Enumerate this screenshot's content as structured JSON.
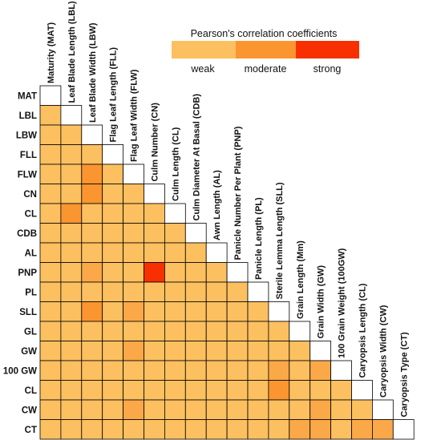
{
  "chart_data": {
    "type": "heatmap",
    "title": "",
    "row_labels": [
      "MAT",
      "LBL",
      "LBW",
      "FLL",
      "FLW",
      "CN",
      "CL",
      "CDB",
      "AL",
      "PNP",
      "PL",
      "SLL",
      "GL",
      "GW",
      "100 GW",
      "CL",
      "CW",
      "CT"
    ],
    "col_labels": [
      "Maturity (MAT)",
      "Leaf Blade Length (LBL)",
      "Leaf Blade Width (LBW)",
      "Flag Leaf Length (FLL)",
      "Flag Leaf Width (FLW)",
      "Culm Number (CN)",
      "Culm Length (CL)",
      "Culm Diameter At Basal (CDB)",
      "Awn Length (AL)",
      "Panicle Number Per Plant (PNP)",
      "Panicle Length (PL)",
      "Sterile Lemma Length (SLL)",
      "Grain Length (Mm)",
      "Grain Width (GW)",
      "100 Grain Weight (100GW)",
      "Caryopsis Length (CL)",
      "Caryopsis Width (CW)",
      "Caryopsis Type (CT)"
    ],
    "values": [
      [
        null
      ],
      [
        1,
        null
      ],
      [
        1,
        1,
        null
      ],
      [
        1,
        1,
        1,
        null
      ],
      [
        1,
        1,
        2,
        1,
        null
      ],
      [
        1,
        1,
        2,
        1,
        1,
        null
      ],
      [
        1,
        2,
        1,
        1,
        1,
        1,
        null
      ],
      [
        1,
        1,
        1,
        1,
        1,
        1,
        1,
        null
      ],
      [
        1,
        1,
        1,
        1,
        1,
        1,
        1,
        1,
        null
      ],
      [
        1,
        1,
        1.5,
        1,
        1,
        3,
        1,
        1,
        1,
        null
      ],
      [
        1,
        1,
        1,
        1,
        1,
        1,
        1,
        1,
        1,
        1,
        null
      ],
      [
        1,
        1,
        2,
        1,
        1.5,
        1,
        1,
        1,
        1,
        1,
        1,
        null
      ],
      [
        1,
        1,
        1,
        1,
        1,
        1,
        1,
        1,
        1,
        1,
        1,
        1,
        null
      ],
      [
        1,
        1,
        1,
        1,
        1.5,
        1,
        1,
        1,
        1,
        1,
        1,
        1,
        1,
        null
      ],
      [
        1,
        1,
        1,
        1,
        1,
        1,
        1,
        1,
        1,
        1,
        1,
        1.5,
        1,
        1.5,
        null
      ],
      [
        1,
        1,
        1,
        1,
        1,
        1,
        1,
        1,
        1,
        1,
        1,
        2,
        1,
        1,
        1,
        null
      ],
      [
        1,
        1,
        1,
        1,
        1.5,
        1,
        1,
        1,
        1,
        1,
        1,
        1,
        1,
        1.5,
        1,
        1,
        null
      ],
      [
        1,
        1,
        1,
        1,
        1,
        1,
        1,
        1,
        1,
        1,
        1,
        1,
        1.5,
        1.5,
        1,
        1.5,
        1.5,
        null
      ]
    ],
    "scale": {
      "1": "weak",
      "2": "moderate",
      "3": "strong"
    },
    "colors": {
      "weak": "#fcc060",
      "moderate": "#fa9530",
      "strong": "#f83000",
      "diagonal": "#ffffff"
    },
    "legend": {
      "title": "Pearson's correlation coefficients",
      "labels": [
        "weak",
        "moderate",
        "strong"
      ],
      "position": "top-right"
    }
  }
}
